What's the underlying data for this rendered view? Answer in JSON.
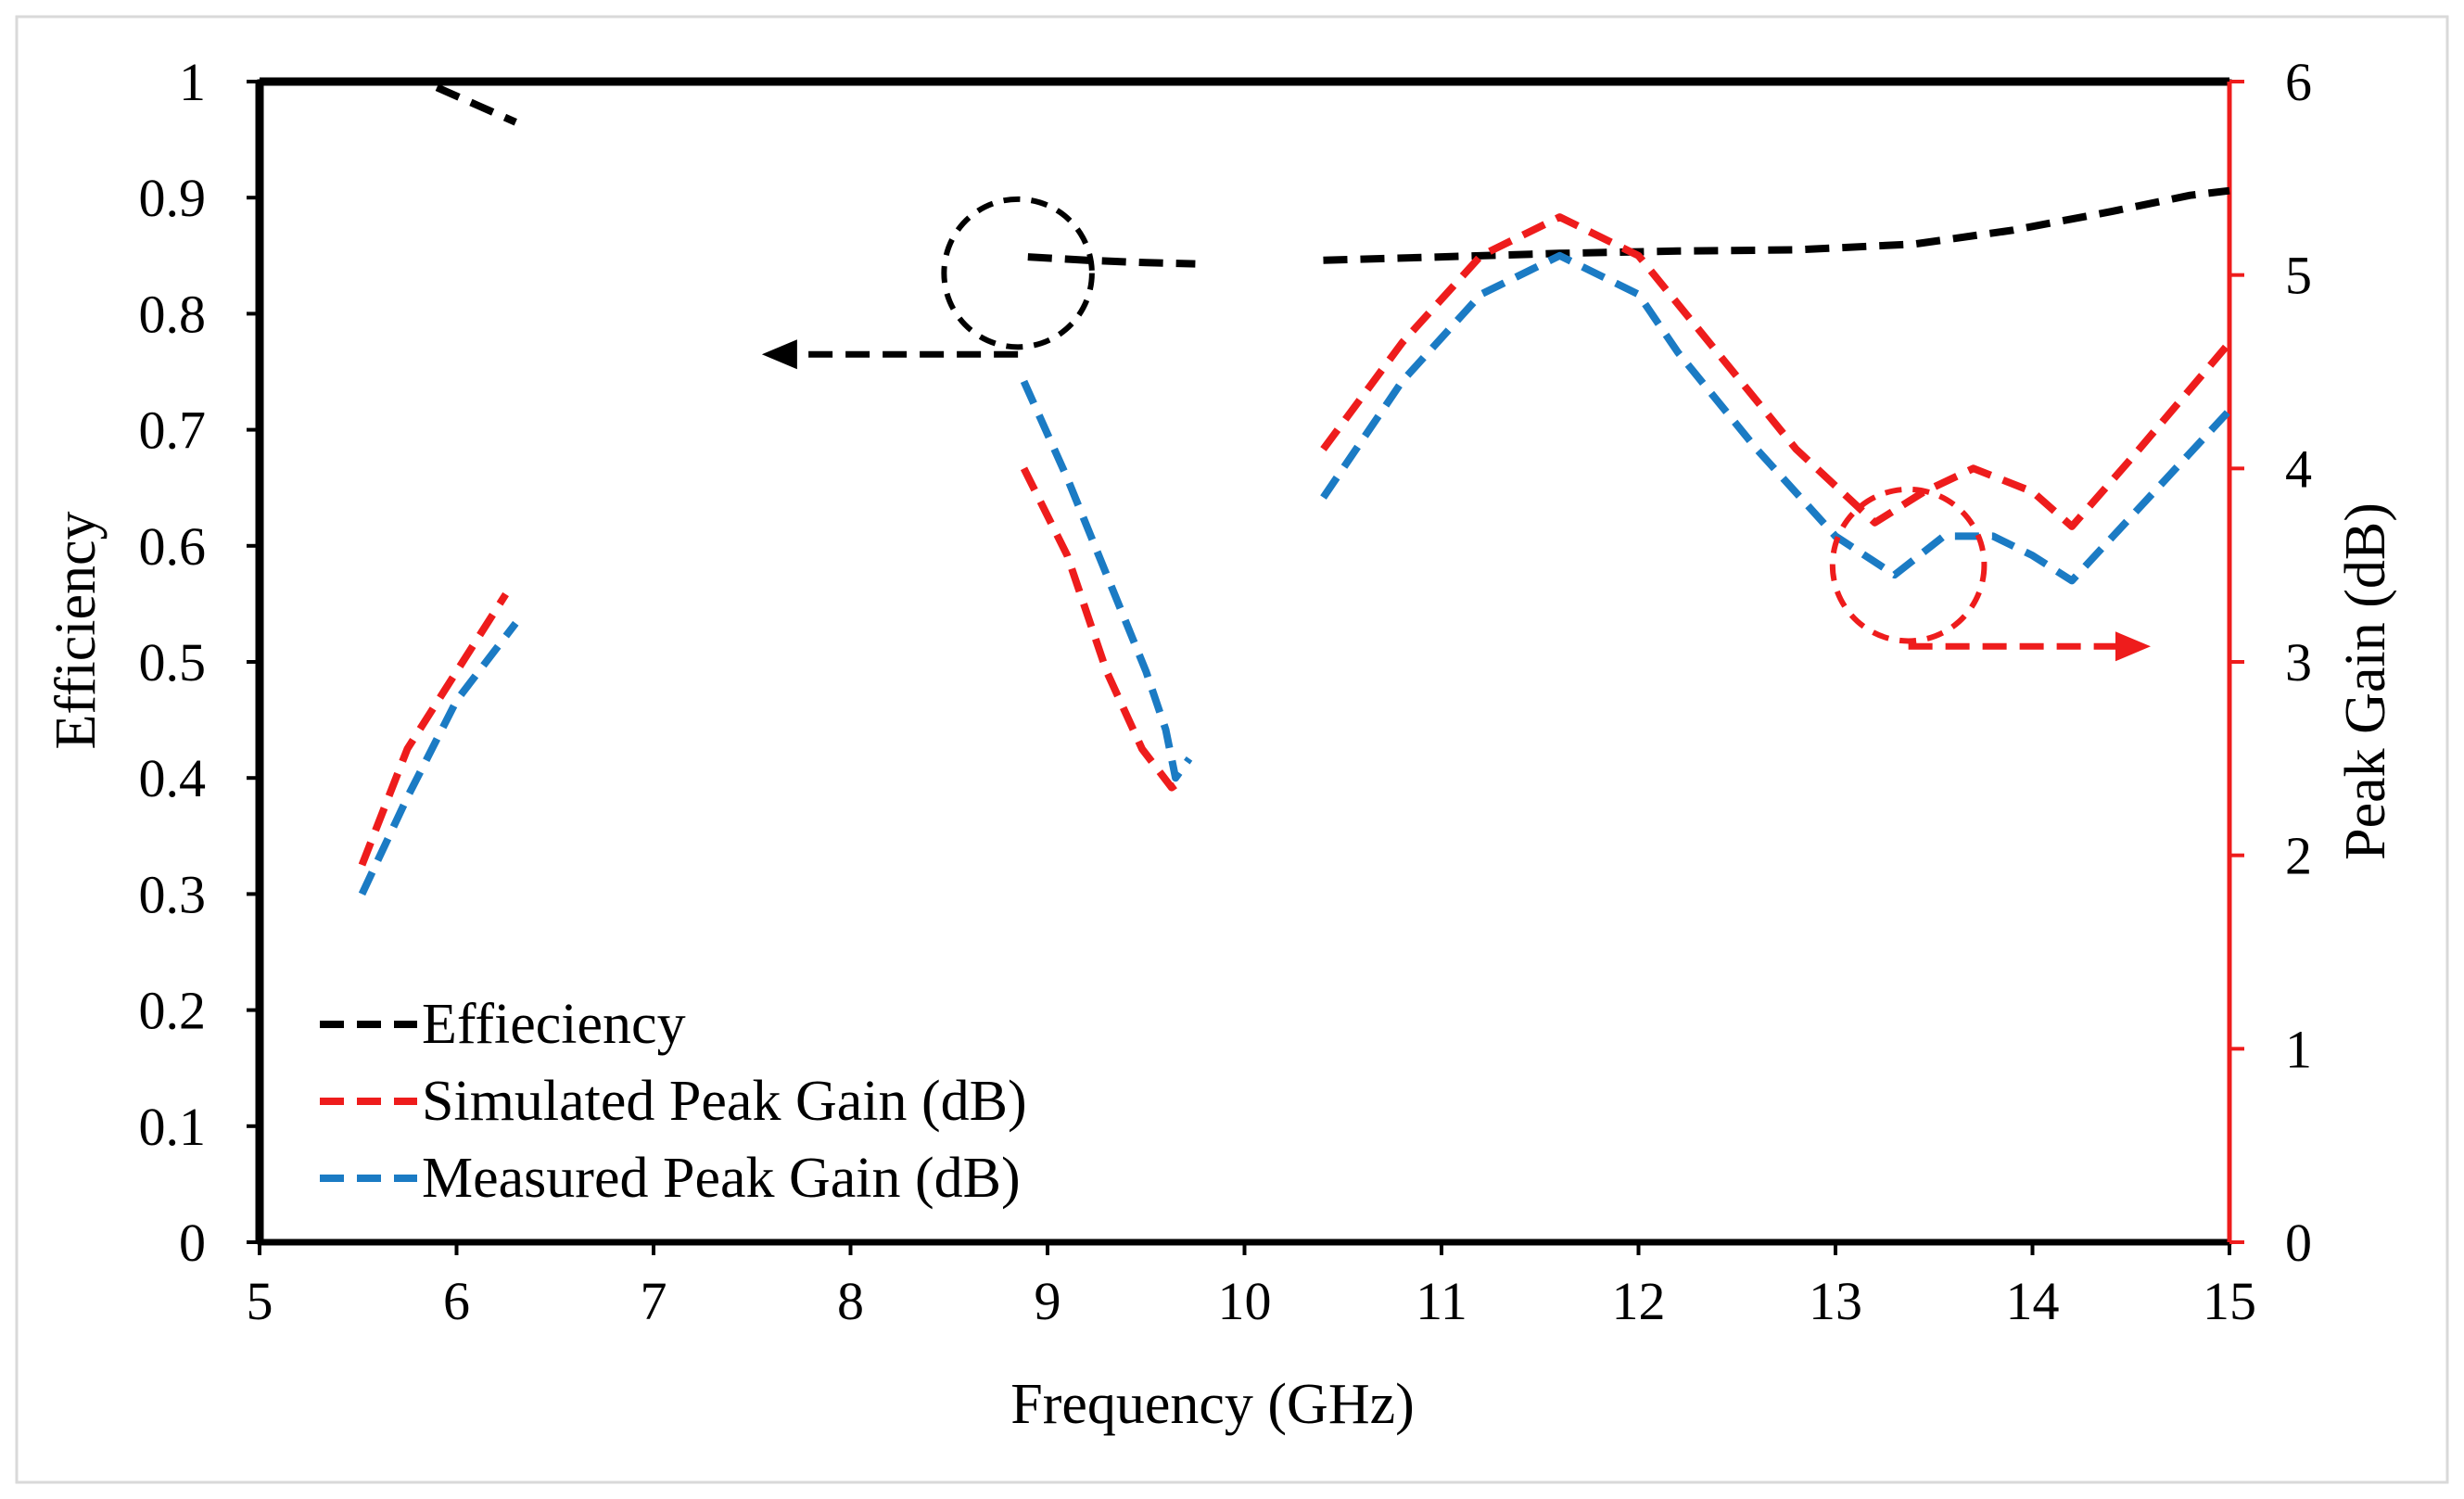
{
  "chart_data": {
    "type": "line",
    "title": "",
    "xlabel": "Frequency (GHz)",
    "ylabel": "Efficiency",
    "y2label": "Peak Gain (dB)",
    "xlim": [
      5,
      15
    ],
    "ylim": [
      0,
      1
    ],
    "y2lim": [
      0,
      6
    ],
    "x_ticks": [
      "5",
      "6",
      "7",
      "8",
      "9",
      "10",
      "11",
      "12",
      "13",
      "14",
      "15"
    ],
    "y_ticks": [
      "0",
      "0.1",
      "0.2",
      "0.3",
      "0.4",
      "0.5",
      "0.6",
      "0.7",
      "0.8",
      "0.9",
      "1"
    ],
    "y2_ticks": [
      "0",
      "1",
      "2",
      "3",
      "4",
      "5",
      "6"
    ],
    "grid": false,
    "legend_position": "bottom-left",
    "series": [
      {
        "name": "Effieciency",
        "axis": "left",
        "color": "#000000",
        "dash": "long",
        "segments": [
          [
            [
              5.9,
              0.995
            ],
            [
              6.1,
              0.98
            ],
            [
              6.3,
              0.965
            ]
          ],
          [
            [
              8.9,
              0.849
            ],
            [
              9.2,
              0.846
            ],
            [
              9.5,
              0.844
            ],
            [
              9.75,
              0.843
            ]
          ],
          [
            [
              10.4,
              0.846
            ],
            [
              11.0,
              0.849
            ],
            [
              11.6,
              0.852
            ],
            [
              12.2,
              0.854
            ],
            [
              12.8,
              0.855
            ],
            [
              13.4,
              0.86
            ],
            [
              13.9,
              0.872
            ],
            [
              14.4,
              0.888
            ],
            [
              14.8,
              0.902
            ],
            [
              15.0,
              0.906
            ]
          ]
        ]
      },
      {
        "name": "Simulated Peak Gain (dB)",
        "axis": "right",
        "color": "#ee1c1c",
        "dash": "long",
        "segments": [
          [
            [
              5.52,
              1.95
            ],
            [
              5.75,
              2.55
            ],
            [
              6.0,
              2.95
            ],
            [
              6.25,
              3.35
            ]
          ],
          [
            [
              8.88,
              4.0
            ],
            [
              9.1,
              3.55
            ],
            [
              9.3,
              2.95
            ],
            [
              9.48,
              2.55
            ],
            [
              9.63,
              2.35
            ],
            [
              9.7,
              2.4
            ]
          ],
          [
            [
              10.4,
              4.1
            ],
            [
              10.8,
              4.65
            ],
            [
              11.2,
              5.1
            ],
            [
              11.6,
              5.3
            ],
            [
              12.0,
              5.1
            ],
            [
              12.4,
              4.6
            ],
            [
              12.8,
              4.1
            ],
            [
              13.2,
              3.72
            ],
            [
              13.45,
              3.88
            ],
            [
              13.7,
              4.0
            ],
            [
              14.0,
              3.88
            ],
            [
              14.2,
              3.7
            ],
            [
              14.5,
              4.05
            ],
            [
              15.0,
              4.65
            ]
          ]
        ]
      },
      {
        "name": "Measured Peak Gain (dB)",
        "axis": "right",
        "color": "#1b7bc4",
        "dash": "long",
        "segments": [
          [
            [
              5.52,
              1.8
            ],
            [
              5.75,
              2.3
            ],
            [
              6.0,
              2.8
            ],
            [
              6.3,
              3.2
            ]
          ],
          [
            [
              8.88,
              4.45
            ],
            [
              9.1,
              3.95
            ],
            [
              9.3,
              3.45
            ],
            [
              9.5,
              2.95
            ],
            [
              9.6,
              2.65
            ],
            [
              9.65,
              2.4
            ],
            [
              9.72,
              2.5
            ]
          ],
          [
            [
              10.4,
              3.85
            ],
            [
              10.8,
              4.45
            ],
            [
              11.2,
              4.9
            ],
            [
              11.6,
              5.1
            ],
            [
              12.0,
              4.9
            ],
            [
              12.2,
              4.6
            ],
            [
              12.6,
              4.1
            ],
            [
              13.0,
              3.65
            ],
            [
              13.3,
              3.45
            ],
            [
              13.55,
              3.65
            ],
            [
              13.8,
              3.65
            ],
            [
              14.0,
              3.55
            ],
            [
              14.2,
              3.42
            ],
            [
              14.5,
              3.75
            ],
            [
              15.0,
              4.3
            ]
          ]
        ]
      }
    ],
    "annotations": [
      {
        "type": "circle",
        "series": "Effieciency",
        "cx": 8.85,
        "cy": 0.835,
        "rx": 0.36,
        "ry": 0.065,
        "color": "#000000",
        "arrow_to_x": 7.55,
        "arrow_y": 0.765,
        "direction": "left"
      },
      {
        "type": "circle",
        "series": "Simulated Peak Gain (dB)",
        "cx": 13.37,
        "cy": 3.5,
        "rx": 0.36,
        "ry": 0.4,
        "color": "#ee1c1c",
        "arrow_to_x": 14.6,
        "arrow_y": 3.08,
        "direction": "right"
      }
    ]
  }
}
